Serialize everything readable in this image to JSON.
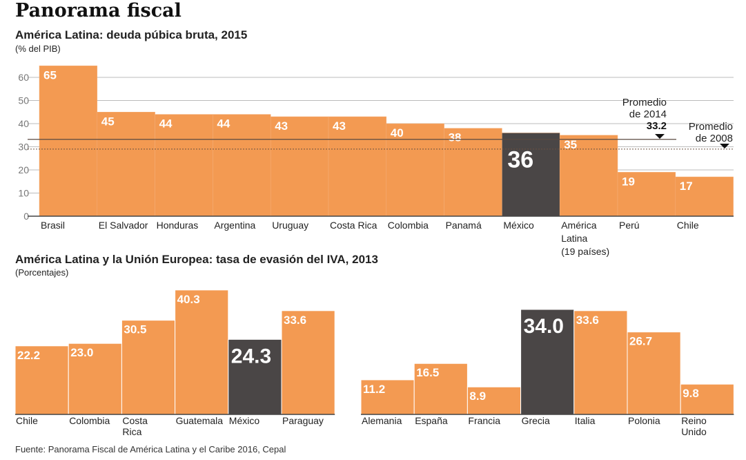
{
  "title": "Panorama fiscal",
  "source": "Fuente: Panorama Fiscal de América Latina y el Caribe 2016, Cepal",
  "colors": {
    "bar": "#F39A52",
    "highlight": "#4A4646",
    "label": "#ffffff"
  },
  "chart_data": [
    {
      "type": "bar",
      "title": "América Latina: deuda púbica bruta, 2015",
      "ylabel": "(% del PIB)",
      "ylim": [
        0,
        65
      ],
      "yticks": [
        0,
        10,
        20,
        30,
        40,
        50,
        60
      ],
      "grid": true,
      "categories": [
        "Brasil",
        "El Salvador",
        "Honduras",
        "Argentina",
        "Uruguay",
        "Costa Rica",
        "Colombia",
        "Panamá",
        "México",
        "América Latina (19 países)",
        "Perú",
        "Chile"
      ],
      "values": [
        65,
        45,
        44,
        44,
        43,
        43,
        40,
        38,
        36,
        35,
        19,
        17
      ],
      "highlight": "México",
      "reference_lines": [
        {
          "label": "Promedio de 2014",
          "value_label": "33.2",
          "value": 33.2,
          "style": "solid"
        },
        {
          "label": "Promedio de 2008",
          "value": 29,
          "style": "dotted"
        }
      ]
    },
    {
      "type": "bar",
      "title": "América Latina y la Unión Europea: tasa de evasión del IVA, 2013",
      "ylabel": "(Porcentajes)",
      "groups": [
        {
          "categories": [
            "Chile",
            "Colombia",
            "Costa Rica",
            "Guatemala",
            "México",
            "Paraguay"
          ],
          "values": [
            22.2,
            23.0,
            30.5,
            40.3,
            24.3,
            33.6
          ],
          "highlight": "México"
        },
        {
          "categories": [
            "Alemania",
            "España",
            "Francia",
            "Grecia",
            "Italia",
            "Polonia",
            "Reino Unido"
          ],
          "values": [
            11.2,
            16.5,
            8.9,
            34.0,
            33.6,
            26.7,
            9.8
          ],
          "highlight": "Grecia"
        }
      ]
    }
  ]
}
